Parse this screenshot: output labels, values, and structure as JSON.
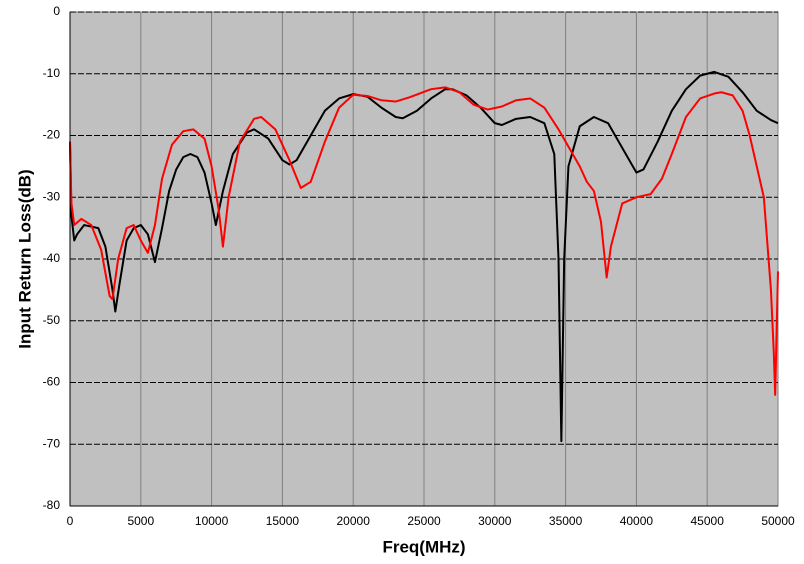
{
  "chart_data": {
    "type": "line",
    "xlabel": "Freq(MHz)",
    "ylabel": "Input Return Loss(dB)",
    "xlim": [
      0,
      50000
    ],
    "xticks": [
      0,
      5000,
      10000,
      15000,
      20000,
      25000,
      30000,
      35000,
      40000,
      45000,
      50000
    ],
    "ylim": [
      -80,
      0
    ],
    "yticks": [
      0,
      -10,
      -20,
      -30,
      -40,
      -50,
      -60,
      -70,
      -80
    ],
    "grid": true,
    "background": "#c0c0c0",
    "series": [
      {
        "color": "#000000",
        "x": [
          0,
          100,
          300,
          500,
          1000,
          2000,
          2500,
          3000,
          3200,
          3500,
          4000,
          4500,
          5000,
          5500,
          6000,
          6500,
          7000,
          7500,
          8000,
          8500,
          9000,
          9500,
          10000,
          10300,
          10800,
          11500,
          12500,
          13000,
          14000,
          15000,
          15500,
          16000,
          17000,
          18000,
          19000,
          20000,
          21000,
          22000,
          23000,
          23500,
          24500,
          25500,
          26500,
          27000,
          28000,
          29000,
          30000,
          30500,
          31500,
          32500,
          33500,
          34200,
          34500,
          34700,
          34900,
          35200,
          36000,
          37000,
          38000,
          39000,
          40000,
          40500,
          41500,
          42500,
          43500,
          44500,
          45500,
          46500,
          47500,
          48500,
          49500,
          50000
        ],
        "values": [
          -21,
          -33,
          -37,
          -36,
          -34.5,
          -35,
          -38,
          -45,
          -48.5,
          -44,
          -37,
          -35,
          -34.5,
          -36,
          -40.5,
          -35,
          -29,
          -25.5,
          -23.5,
          -23,
          -23.5,
          -26,
          -31,
          -34.5,
          -29,
          -23,
          -19.5,
          -19,
          -20.5,
          -24,
          -24.7,
          -24,
          -20,
          -16,
          -14,
          -13.3,
          -13.7,
          -15.5,
          -17,
          -17.2,
          -16,
          -14,
          -12.5,
          -12.5,
          -13.5,
          -15.5,
          -18,
          -18.3,
          -17.3,
          -17,
          -18,
          -23,
          -40,
          -69.5,
          -40,
          -25,
          -18.5,
          -17,
          -18,
          -22,
          -26,
          -25.5,
          -21,
          -16,
          -12.5,
          -10.3,
          -9.7,
          -10.5,
          -13,
          -16,
          -17.5,
          -18
        ]
      },
      {
        "color": "#ff0000",
        "x": [
          0,
          100,
          300,
          800,
          1500,
          2200,
          2800,
          3000,
          3400,
          4000,
          4500,
          5000,
          5500,
          6000,
          6500,
          7200,
          8000,
          8700,
          9500,
          10000,
          10500,
          10800,
          11200,
          12000,
          13000,
          13500,
          14500,
          15500,
          16300,
          17000,
          18000,
          19000,
          20000,
          21000,
          22000,
          23000,
          24000,
          25500,
          26500,
          27500,
          28500,
          29500,
          30500,
          31500,
          32500,
          33500,
          34500,
          35500,
          36000,
          36500,
          37000,
          37500,
          37900,
          38200,
          39000,
          40000,
          41000,
          41800,
          42500,
          43500,
          44500,
          45500,
          46000,
          46800,
          47500,
          48000,
          48500,
          49000,
          49500,
          49700,
          49800,
          50000
        ],
        "values": [
          -21,
          -31,
          -34.5,
          -33.5,
          -34.5,
          -38.5,
          -46,
          -46.5,
          -40,
          -35,
          -34.5,
          -37,
          -39,
          -34.5,
          -27,
          -21.5,
          -19.3,
          -19,
          -20.5,
          -25,
          -32,
          -38,
          -30,
          -21,
          -17.3,
          -17,
          -19,
          -24,
          -28.5,
          -27.5,
          -21,
          -15.5,
          -13.4,
          -13.6,
          -14.3,
          -14.5,
          -13.8,
          -12.5,
          -12.2,
          -13,
          -15,
          -15.8,
          -15.3,
          -14.3,
          -14,
          -15.5,
          -19,
          -23,
          -25,
          -27.5,
          -29,
          -34,
          -43,
          -38,
          -31,
          -30,
          -29.5,
          -27,
          -23,
          -17,
          -14,
          -13.2,
          -13,
          -13.5,
          -16,
          -20,
          -25,
          -30,
          -45,
          -55,
          -62,
          -42
        ]
      }
    ]
  }
}
